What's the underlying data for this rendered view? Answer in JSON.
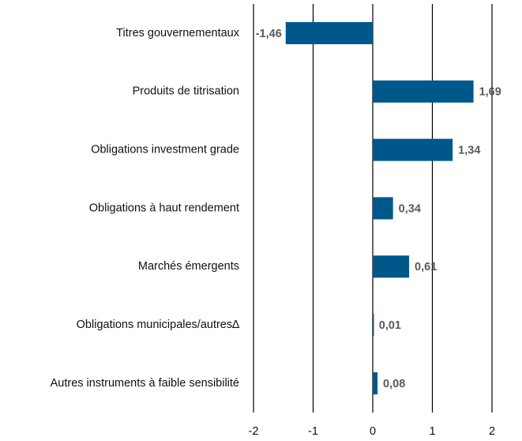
{
  "chart_data": {
    "type": "barh",
    "categories": [
      "Titres gouvernementaux",
      "Produits de titrisation",
      "Obligations investment grade",
      "Obligations à haut rendement",
      "Marchés émergents",
      "Obligations municipales/autres∆",
      "Autres instruments à faible sensibilité"
    ],
    "values": [
      -1.46,
      1.69,
      1.34,
      0.34,
      0.61,
      0.01,
      0.08
    ],
    "value_labels": [
      "-1,46",
      "1,69",
      "1,34",
      "0,34",
      "0,61",
      "0,01",
      "0,08"
    ],
    "color": "#00578a",
    "xlim": [
      -2,
      2
    ],
    "xticks": [
      -2,
      -1,
      0,
      1,
      2
    ],
    "grid": true
  }
}
